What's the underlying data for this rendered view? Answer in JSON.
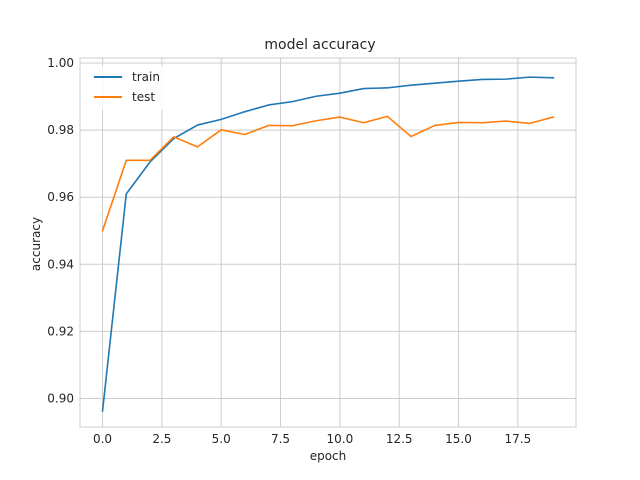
{
  "chart_data": {
    "type": "line",
    "title": "model accuracy",
    "xlabel": "epoch",
    "ylabel": "accuracy",
    "xlim": [
      -0.95,
      19.95
    ],
    "ylim": [
      0.8915,
      1.0015
    ],
    "xticks": [
      0.0,
      2.5,
      5.0,
      7.5,
      10.0,
      12.5,
      15.0,
      17.5
    ],
    "xtick_labels": [
      "0.0",
      "2.5",
      "5.0",
      "7.5",
      "10.0",
      "12.5",
      "15.0",
      "17.5"
    ],
    "yticks": [
      0.9,
      0.92,
      0.94,
      0.96,
      0.98,
      1.0
    ],
    "ytick_labels": [
      "0.90",
      "0.92",
      "0.94",
      "0.96",
      "0.98",
      "1.00"
    ],
    "grid": true,
    "legend_position": "upper-left",
    "x": [
      0,
      1,
      2,
      3,
      4,
      5,
      6,
      7,
      8,
      9,
      10,
      11,
      12,
      13,
      14,
      15,
      16,
      17,
      18,
      19
    ],
    "series": [
      {
        "name": "train",
        "color": "#1f77b4",
        "values": [
          0.8963,
          0.961,
          0.9705,
          0.9775,
          0.9815,
          0.9832,
          0.9855,
          0.9875,
          0.9885,
          0.9901,
          0.991,
          0.9924,
          0.9926,
          0.9934,
          0.994,
          0.9946,
          0.9951,
          0.9952,
          0.9958,
          0.9956
        ]
      },
      {
        "name": "test",
        "color": "#ff7f0e",
        "values": [
          0.95,
          0.971,
          0.971,
          0.978,
          0.975,
          0.9801,
          0.9787,
          0.9814,
          0.9813,
          0.9828,
          0.9839,
          0.9822,
          0.9841,
          0.9781,
          0.9814,
          0.9823,
          0.9822,
          0.9827,
          0.982,
          0.9839
        ]
      }
    ]
  }
}
